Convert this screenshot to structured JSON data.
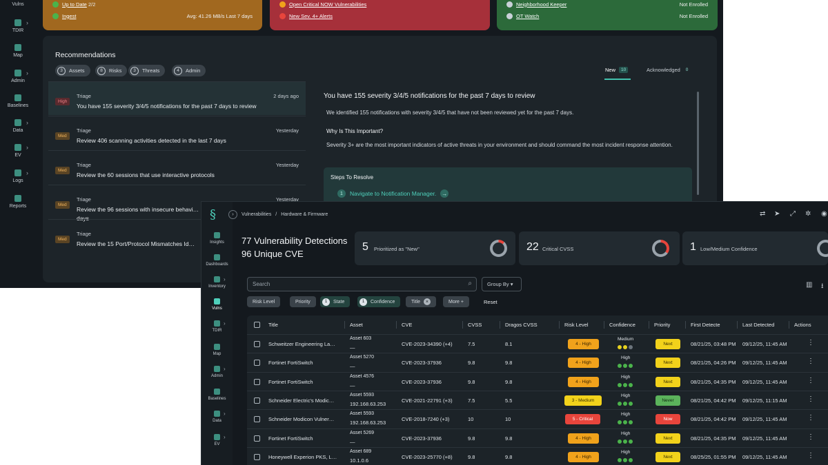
{
  "back": {
    "rail": [
      {
        "label": "Vulns",
        "icon": "vulns-icon",
        "chev": false
      },
      {
        "label": "TDIR",
        "icon": "tdir-icon",
        "chev": true
      },
      {
        "label": "Map",
        "icon": "map-icon",
        "chev": false
      },
      {
        "label": "Admin",
        "icon": "admin-icon",
        "chev": true
      },
      {
        "label": "Baselines",
        "icon": "baselines-icon",
        "chev": false
      },
      {
        "label": "Data",
        "icon": "data-icon",
        "chev": true
      },
      {
        "label": "EV",
        "icon": "ev-icon",
        "chev": true
      },
      {
        "label": "Logs",
        "icon": "logs-icon",
        "chev": true
      },
      {
        "label": "Reports",
        "icon": "reports-icon",
        "chev": false
      }
    ],
    "status_cards": [
      {
        "bg": "#a1681f",
        "rows": [
          {
            "link": "Up to Date",
            "suffix": " 2/2",
            "right": "",
            "dot": "#4bb34b",
            "icon": "check-circle-icon"
          },
          {
            "link": "Ingest",
            "suffix": "",
            "right": "Avg: 41.26 MB/s Last 7 days",
            "dot": "#4bb34b",
            "icon": "check-circle-icon"
          }
        ]
      },
      {
        "bg": "#a6303a",
        "rows": [
          {
            "link": "Open Critical NOW Vulnerabilities",
            "suffix": "",
            "right": "",
            "dot": "#f0a21b",
            "icon": "warning-icon"
          },
          {
            "link": "New Sev. 4+ Alerts",
            "suffix": "",
            "right": "",
            "dot": "#e8453c",
            "icon": "alert-icon"
          }
        ]
      },
      {
        "bg": "#2c6a3a",
        "rows": [
          {
            "link": "Neighborhood Keeper",
            "suffix": "",
            "right": "Not Enrolled",
            "dot": "#c9d1d8",
            "icon": "info-icon"
          },
          {
            "link": "OT Watch",
            "suffix": "",
            "right": "Not Enrolled",
            "dot": "#c9d1d8",
            "icon": "info-icon"
          }
        ]
      }
    ],
    "recommendations": {
      "title": "Recommendations",
      "chips": [
        {
          "count": "3",
          "label": "Assets"
        },
        {
          "count": "8",
          "label": "Risks"
        },
        {
          "count": "3",
          "label": "Threats"
        },
        {
          "count": "4",
          "label": "Admin"
        }
      ],
      "tabs": [
        {
          "label": "New",
          "count": "10"
        },
        {
          "label": "Acknowledged",
          "count": "0"
        }
      ],
      "items": [
        {
          "badge": "High",
          "badge_bg": "#5a2a2e",
          "badge_fg": "#f07f86",
          "category": "Triage",
          "time": "2 days ago",
          "text": "You have 155 severity 3/4/5 notifications for the past 7 days to review",
          "selected": true
        },
        {
          "badge": "Med",
          "badge_bg": "#5a4424",
          "badge_fg": "#f0b35c",
          "category": "Triage",
          "time": "Yesterday",
          "text": "Review 406 scanning activities detected in the last 7 days",
          "selected": false
        },
        {
          "badge": "Med",
          "badge_bg": "#5a4424",
          "badge_fg": "#f0b35c",
          "category": "Triage",
          "time": "Yesterday",
          "text": "Review the 60 sessions that use interactive protocols",
          "selected": false
        },
        {
          "badge": "Med",
          "badge_bg": "#5a4424",
          "badge_fg": "#f0b35c",
          "category": "Triage",
          "time": "Yesterday",
          "text": "Review the 96 sessions with insecure behavi… days",
          "selected": false
        },
        {
          "badge": "Med",
          "badge_bg": "#5a4424",
          "badge_fg": "#f0b35c",
          "category": "Triage",
          "time": "",
          "text": "Review the 15 Port/Protocol Mismatches Id…",
          "selected": false
        }
      ],
      "detail": {
        "title": "You have 155 severity 3/4/5 notifications for the past 7 days to review",
        "p1": "We identified 155 notifications with severity 3/4/5 that have not been reviewed yet for the past 7 days.",
        "h2": "Why Is This Important?",
        "p2": "Severity 3+ are the most important indicators of active threats in your environment and should command the most incident response attention.",
        "steps_title": "Steps To Resolve",
        "step_num": "1",
        "step_text": "Navigate to Notification Manager."
      }
    }
  },
  "front": {
    "rail": [
      {
        "label": "Insights",
        "icon": "insights-icon",
        "chev": false,
        "active": false
      },
      {
        "label": "Dashboards",
        "icon": "dashboards-icon",
        "chev": false,
        "active": false
      },
      {
        "label": "Inventory",
        "icon": "inventory-icon",
        "chev": true,
        "active": false
      },
      {
        "label": "Vulns",
        "icon": "vulns-icon",
        "chev": false,
        "active": true
      },
      {
        "label": "TDIR",
        "icon": "tdir-icon",
        "chev": true,
        "active": false
      },
      {
        "label": "Map",
        "icon": "map-icon",
        "chev": false,
        "active": false
      },
      {
        "label": "Admin",
        "icon": "admin-icon",
        "chev": true,
        "active": false
      },
      {
        "label": "Baselines",
        "icon": "baselines-icon",
        "chev": false,
        "active": false
      },
      {
        "label": "Data",
        "icon": "data-icon",
        "chev": true,
        "active": false
      },
      {
        "label": "EV",
        "icon": "ev-icon",
        "chev": true,
        "active": false
      }
    ],
    "breadcrumb": [
      "Vulnerabilities",
      "/",
      "Hardware & Firmware"
    ],
    "header_line1": "77 Vulnerability Detections",
    "header_line2": "96 Unique CVE",
    "stats": [
      {
        "num": "5",
        "label": "Prioritized as \"New\"",
        "ring": "#9aa3ab",
        "ring_accent": "#e8453c"
      },
      {
        "num": "22",
        "label": "Critical CVSS",
        "ring": "#9aa3ab",
        "ring_accent": "#e8453c"
      },
      {
        "num": "1",
        "label": "Low/Medium Confidence",
        "ring": "#9aa3ab",
        "ring_accent": "#9aa3ab"
      }
    ],
    "search_placeholder": "Search",
    "group_by": "Group By ▾",
    "filters": [
      {
        "label": "Risk Level",
        "count": "",
        "active": false,
        "x": false
      },
      {
        "label": "Priority",
        "count": "",
        "active": false,
        "x": false
      },
      {
        "label": "State",
        "count": "1",
        "active": true,
        "x": false
      },
      {
        "label": "Confidence",
        "count": "1",
        "active": true,
        "x": false
      },
      {
        "label": "Title",
        "count": "",
        "active": false,
        "x": true
      },
      {
        "label": "More +",
        "count": "",
        "active": false,
        "x": false
      }
    ],
    "reset": "Reset",
    "columns": [
      "Title",
      "Asset",
      "CVE",
      "CVSS",
      "Dragos CVSS",
      "Risk Level",
      "Confidence",
      "Priority",
      "First Detecte",
      "Last Detected",
      "Actions"
    ],
    "rows": [
      {
        "title": "Schweitzer Engineering La…",
        "asset1": "Asset 603",
        "asset2": "—",
        "cve": "CVE-2023-34390 (+4)",
        "cvss": "7.5",
        "dcvss": "8.1",
        "risk": "4 - High",
        "risk_bg": "#f0a21b",
        "risk_fg": "#3a2400",
        "conf": "Medium",
        "dots": [
          "#e7d21f",
          "#e7d21f",
          "#6b747c"
        ],
        "priority": "Next",
        "prio_bg": "#f2d21b",
        "prio_fg": "#3a3000",
        "first": "08/21/25, 03:48 PM",
        "last": "09/12/25, 11:45 AM"
      },
      {
        "title": "Fortinet FortiSwitch",
        "asset1": "Asset 5270",
        "asset2": "—",
        "cve": "CVE-2023-37936",
        "cvss": "9.8",
        "dcvss": "9.8",
        "risk": "4 - High",
        "risk_bg": "#f0a21b",
        "risk_fg": "#3a2400",
        "conf": "High",
        "dots": [
          "#4bb34b",
          "#4bb34b",
          "#4bb34b"
        ],
        "priority": "Next",
        "prio_bg": "#f2d21b",
        "prio_fg": "#3a3000",
        "first": "08/21/25, 04:26 PM",
        "last": "09/12/25, 11:45 AM"
      },
      {
        "title": "Fortinet FortiSwitch",
        "asset1": "Asset 4576",
        "asset2": "—",
        "cve": "CVE-2023-37936",
        "cvss": "9.8",
        "dcvss": "9.8",
        "risk": "4 - High",
        "risk_bg": "#f0a21b",
        "risk_fg": "#3a2400",
        "conf": "High",
        "dots": [
          "#4bb34b",
          "#4bb34b",
          "#4bb34b"
        ],
        "priority": "Next",
        "prio_bg": "#f2d21b",
        "prio_fg": "#3a3000",
        "first": "08/21/25, 04:35 PM",
        "last": "09/12/25, 11:45 AM"
      },
      {
        "title": "Schneider Electric's Modic…",
        "asset1": "Asset 5593",
        "asset2": "192.168.63.253",
        "cve": "CVE-2021-22791 (+3)",
        "cvss": "7.5",
        "dcvss": "5.5",
        "risk": "3 - Medium",
        "risk_bg": "#f2d21b",
        "risk_fg": "#3a3000",
        "conf": "High",
        "dots": [
          "#4bb34b",
          "#4bb34b",
          "#4bb34b"
        ],
        "priority": "Never",
        "prio_bg": "#5bb35b",
        "prio_fg": "#0f2a0f",
        "first": "08/21/25, 04:42 PM",
        "last": "09/12/25, 11:15 AM"
      },
      {
        "title": "Schneider Modicon Vulner…",
        "asset1": "Asset 5593",
        "asset2": "192.168.63.253",
        "cve": "CVE-2018-7240 (+3)",
        "cvss": "10",
        "dcvss": "10",
        "risk": "5 - Critical",
        "risk_bg": "#e8453c",
        "risk_fg": "#ffffff",
        "conf": "High",
        "dots": [
          "#4bb34b",
          "#4bb34b",
          "#4bb34b"
        ],
        "priority": "Now",
        "prio_bg": "#e8453c",
        "prio_fg": "#ffffff",
        "first": "08/21/25, 04:42 PM",
        "last": "09/12/25, 11:45 AM"
      },
      {
        "title": "Fortinet FortiSwitch",
        "asset1": "Asset 5269",
        "asset2": "—",
        "cve": "CVE-2023-37936",
        "cvss": "9.8",
        "dcvss": "9.8",
        "risk": "4 - High",
        "risk_bg": "#f0a21b",
        "risk_fg": "#3a2400",
        "conf": "High",
        "dots": [
          "#4bb34b",
          "#4bb34b",
          "#4bb34b"
        ],
        "priority": "Next",
        "prio_bg": "#f2d21b",
        "prio_fg": "#3a3000",
        "first": "08/21/25, 04:35 PM",
        "last": "09/12/25, 11:45 AM"
      },
      {
        "title": "Honeywell Experion PKS, L…",
        "asset1": "Asset 689",
        "asset2": "10.1.0.6",
        "cve": "CVE-2023-25770 (+8)",
        "cvss": "9.8",
        "dcvss": "9.8",
        "risk": "4 - High",
        "risk_bg": "#f0a21b",
        "risk_fg": "#3a2400",
        "conf": "High",
        "dots": [
          "#4bb34b",
          "#4bb34b",
          "#4bb34b"
        ],
        "priority": "Next",
        "prio_bg": "#f2d21b",
        "prio_fg": "#3a3000",
        "first": "08/25/25, 01:55 PM",
        "last": "09/12/25, 11:45 AM"
      }
    ]
  }
}
